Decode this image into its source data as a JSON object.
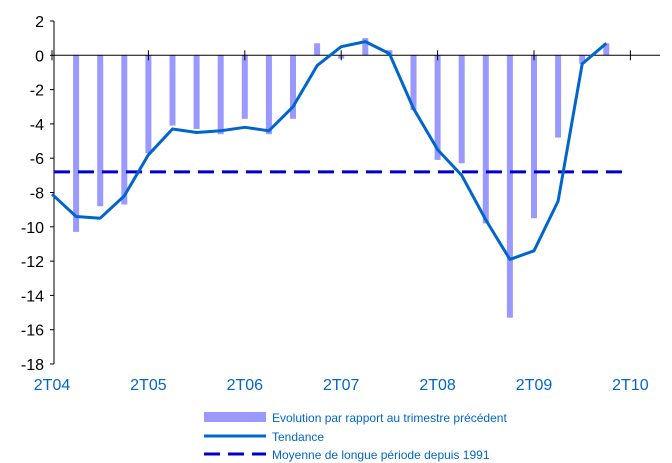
{
  "chart_data": {
    "type": "bar",
    "title": "",
    "xlabel": "",
    "ylabel": "",
    "ylim": [
      -18,
      2
    ],
    "y_ticks": [
      "2",
      "0",
      "-2",
      "-4",
      "-6",
      "-8",
      "-10",
      "-12",
      "-14",
      "-16",
      "-18"
    ],
    "x_tick_labels": [
      "2T04",
      "2T05",
      "2T06",
      "2T07",
      "2T08",
      "2T09",
      "2T10"
    ],
    "x_tick_quarter_index": [
      0,
      4,
      8,
      12,
      16,
      20,
      24
    ],
    "grid": false,
    "legend_position": "bottom",
    "colors": {
      "bars": "#9999ff",
      "trend": "#0066cc",
      "average": "#0000cc",
      "axis": "#000000",
      "text": "#0066cc",
      "tick_text": "#000000"
    },
    "series": [
      {
        "name": "Evolution par rapport au trimestre précédent",
        "type": "bar",
        "values": [
          -10.3,
          -8.8,
          -8.7,
          -5.7,
          -4.1,
          -4.3,
          -4.6,
          -3.7,
          -4.6,
          -3.7,
          0.7,
          -0.2,
          1.0,
          0.3,
          -3.2,
          -6.1,
          -6.3,
          -9.8,
          -15.3,
          -9.5,
          -4.8,
          -0.5,
          0.7
        ]
      },
      {
        "name": "Tendance",
        "type": "line",
        "values": [
          -9.4,
          -9.5,
          -8.2,
          -5.8,
          -4.3,
          -4.5,
          -4.4,
          -4.2,
          -4.4,
          -3.0,
          -0.6,
          0.5,
          0.8,
          0.1,
          -3.1,
          -5.5,
          -7.0,
          -9.6,
          -11.9,
          -11.4,
          -8.5,
          -0.5,
          0.7
        ],
        "start_value": -8.1
      },
      {
        "name": "Moyenne de longue période depuis 1991",
        "type": "dashed-line",
        "value": -6.8
      }
    ]
  }
}
